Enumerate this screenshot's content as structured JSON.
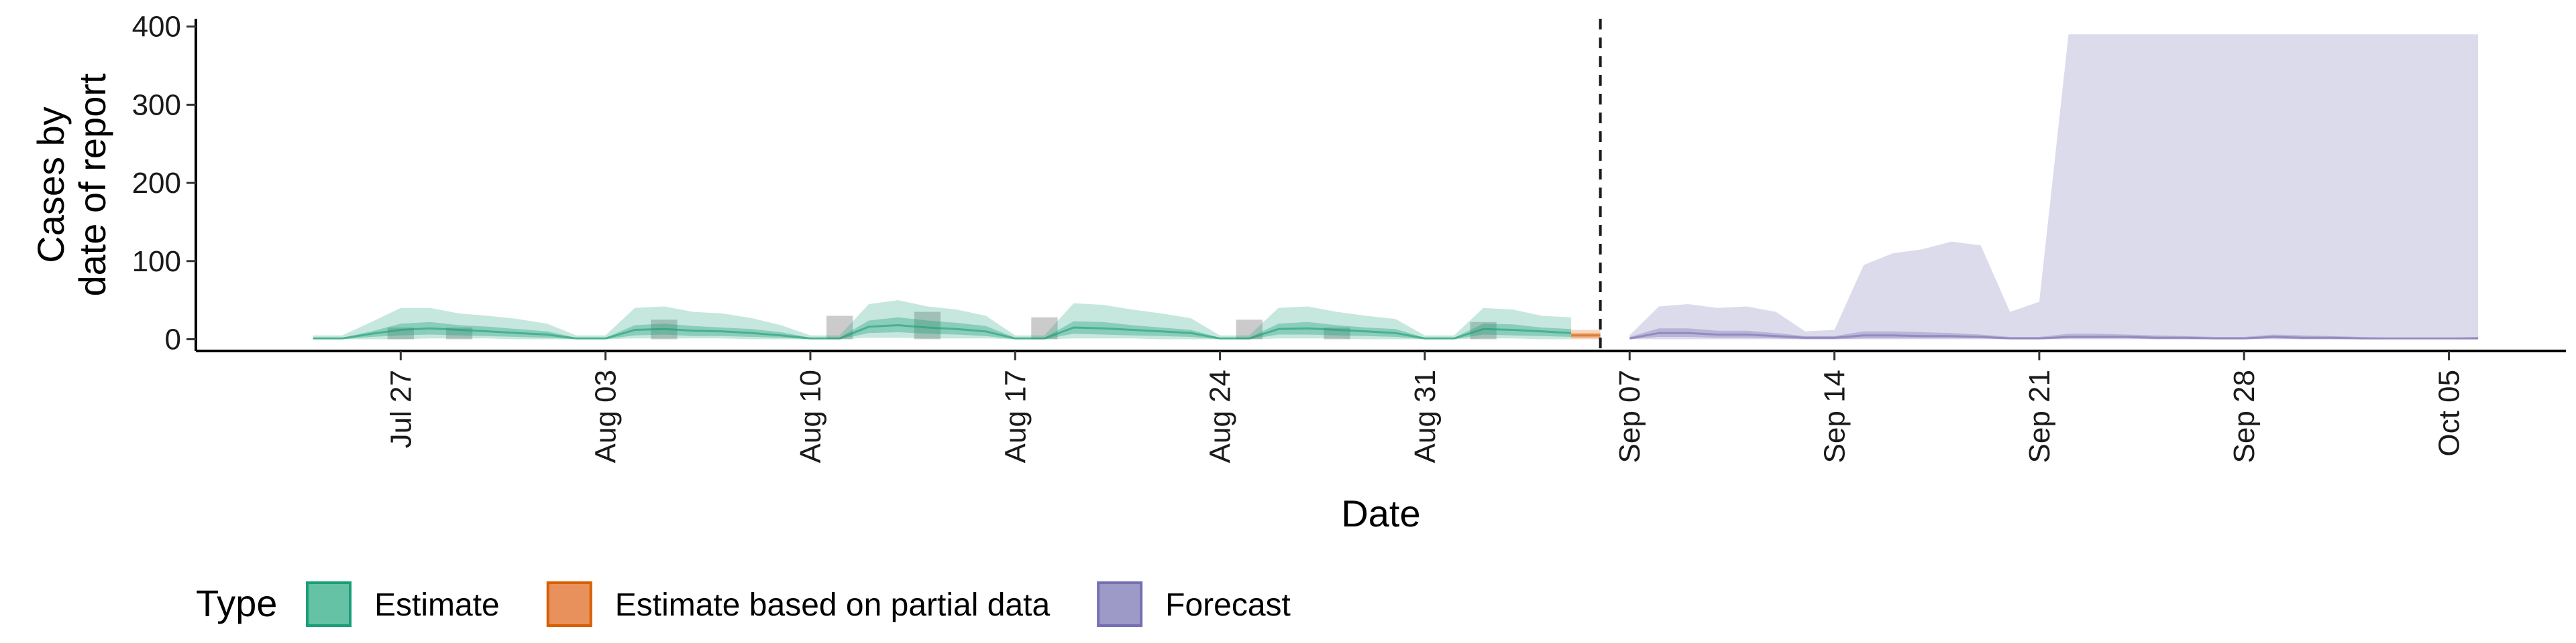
{
  "chart_data": {
    "type": "area",
    "xlabel": "Date",
    "ylabel_lines": [
      "Cases by",
      "date of report"
    ],
    "ylim": [
      -15,
      410
    ],
    "xlim": [
      "2020-07-20",
      "2020-10-09"
    ],
    "y_ticks": [
      0,
      100,
      200,
      300,
      400
    ],
    "x_ticks": [
      {
        "date": "2020-07-27",
        "label": "Jul 27"
      },
      {
        "date": "2020-08-03",
        "label": "Aug 03"
      },
      {
        "date": "2020-08-10",
        "label": "Aug 10"
      },
      {
        "date": "2020-08-17",
        "label": "Aug 17"
      },
      {
        "date": "2020-08-24",
        "label": "Aug 24"
      },
      {
        "date": "2020-08-31",
        "label": "Aug 31"
      },
      {
        "date": "2020-09-07",
        "label": "Sep 07"
      },
      {
        "date": "2020-09-14",
        "label": "Sep 14"
      },
      {
        "date": "2020-09-21",
        "label": "Sep 21"
      },
      {
        "date": "2020-09-28",
        "label": "Sep 28"
      },
      {
        "date": "2020-10-05",
        "label": "Oct 05"
      }
    ],
    "vline_date": "2020-09-06",
    "grid": false,
    "legend": {
      "title": "Type",
      "position": "bottom-left",
      "entries": [
        {
          "label": "Estimate",
          "fill": "#66c2a5",
          "stroke": "#1b9e77"
        },
        {
          "label": "Estimate based on partial data",
          "fill": "#e8915c",
          "stroke": "#d95f02"
        },
        {
          "label": "Forecast",
          "fill": "#9e9ac8",
          "stroke": "#7570b3"
        }
      ]
    },
    "series": [
      {
        "type_label": "Estimate",
        "color": "#1b9e77",
        "dates": [
          "2020-07-24",
          "2020-07-25",
          "2020-07-26",
          "2020-07-27",
          "2020-07-28",
          "2020-07-29",
          "2020-07-30",
          "2020-07-31",
          "2020-08-01",
          "2020-08-02",
          "2020-08-03",
          "2020-08-04",
          "2020-08-05",
          "2020-08-06",
          "2020-08-07",
          "2020-08-08",
          "2020-08-09",
          "2020-08-10",
          "2020-08-11",
          "2020-08-12",
          "2020-08-13",
          "2020-08-14",
          "2020-08-15",
          "2020-08-16",
          "2020-08-17",
          "2020-08-18",
          "2020-08-19",
          "2020-08-20",
          "2020-08-21",
          "2020-08-22",
          "2020-08-23",
          "2020-08-24",
          "2020-08-25",
          "2020-08-26",
          "2020-08-27",
          "2020-08-28",
          "2020-08-29",
          "2020-08-30",
          "2020-08-31",
          "2020-09-01",
          "2020-09-02",
          "2020-09-03",
          "2020-09-04",
          "2020-09-05"
        ],
        "upper90": [
          5,
          5,
          22,
          40,
          40,
          33,
          30,
          26,
          20,
          5,
          5,
          40,
          42,
          35,
          33,
          27,
          18,
          5,
          5,
          45,
          50,
          42,
          38,
          30,
          5,
          5,
          46,
          44,
          38,
          33,
          27,
          5,
          5,
          40,
          42,
          35,
          30,
          26,
          5,
          5,
          40,
          38,
          30,
          28
        ],
        "upper50": [
          2,
          2,
          10,
          20,
          22,
          18,
          16,
          13,
          10,
          2,
          2,
          18,
          20,
          17,
          15,
          13,
          9,
          2,
          2,
          24,
          28,
          24,
          21,
          17,
          2,
          2,
          23,
          22,
          18,
          15,
          12,
          2,
          2,
          20,
          22,
          18,
          15,
          13,
          2,
          2,
          20,
          19,
          15,
          13
        ],
        "median": [
          1,
          1,
          7,
          12,
          14,
          12,
          10,
          8,
          6,
          1,
          1,
          12,
          13,
          11,
          10,
          8,
          5,
          1,
          1,
          16,
          18,
          15,
          13,
          10,
          1,
          1,
          15,
          14,
          12,
          10,
          8,
          1,
          1,
          13,
          14,
          12,
          10,
          8,
          1,
          1,
          13,
          12,
          10,
          8
        ],
        "lower50": [
          0,
          0,
          3,
          5,
          6,
          5,
          4,
          3,
          2,
          0,
          0,
          5,
          6,
          4,
          4,
          3,
          2,
          0,
          0,
          8,
          9,
          7,
          6,
          4,
          0,
          0,
          7,
          6,
          5,
          4,
          3,
          0,
          0,
          6,
          6,
          5,
          4,
          3,
          0,
          0,
          6,
          5,
          4,
          3
        ],
        "lower90": [
          0,
          0,
          0,
          0,
          1,
          1,
          1,
          0,
          0,
          0,
          0,
          1,
          1,
          1,
          1,
          0,
          0,
          0,
          0,
          2,
          2,
          1,
          1,
          1,
          0,
          0,
          1,
          1,
          1,
          0,
          0,
          0,
          0,
          1,
          1,
          1,
          0,
          0,
          0,
          0,
          1,
          1,
          0,
          0
        ],
        "bars": [
          {
            "date": "2020-07-27",
            "value": 15
          },
          {
            "date": "2020-07-29",
            "value": 15
          },
          {
            "date": "2020-08-05",
            "value": 25
          },
          {
            "date": "2020-08-11",
            "value": 30
          },
          {
            "date": "2020-08-14",
            "value": 35
          },
          {
            "date": "2020-08-18",
            "value": 28
          },
          {
            "date": "2020-08-25",
            "value": 25
          },
          {
            "date": "2020-08-28",
            "value": 15
          },
          {
            "date": "2020-09-02",
            "value": 22
          }
        ]
      },
      {
        "type_label": "Estimate based on partial data",
        "color": "#d95f02",
        "dates": [
          "2020-09-05",
          "2020-09-06"
        ],
        "upper90": [
          12,
          12
        ],
        "upper50": [
          8,
          8
        ],
        "median": [
          5,
          5
        ],
        "lower50": [
          2,
          2
        ],
        "lower90": [
          0,
          0
        ]
      },
      {
        "type_label": "Forecast",
        "color": "#7570b3",
        "dates": [
          "2020-09-07",
          "2020-09-08",
          "2020-09-09",
          "2020-09-10",
          "2020-09-11",
          "2020-09-12",
          "2020-09-13",
          "2020-09-14",
          "2020-09-15",
          "2020-09-16",
          "2020-09-17",
          "2020-09-18",
          "2020-09-19",
          "2020-09-20",
          "2020-09-21",
          "2020-09-22",
          "2020-09-23",
          "2020-09-24",
          "2020-09-25",
          "2020-09-26",
          "2020-09-27",
          "2020-09-28",
          "2020-09-29",
          "2020-09-30",
          "2020-10-01",
          "2020-10-02",
          "2020-10-03",
          "2020-10-04",
          "2020-10-05",
          "2020-10-06"
        ],
        "upper90": [
          5,
          42,
          45,
          40,
          42,
          35,
          10,
          12,
          95,
          110,
          115,
          125,
          120,
          35,
          48,
          390,
          390,
          390,
          390,
          390,
          390,
          390,
          390,
          390,
          390,
          390,
          390,
          390,
          390,
          390
        ],
        "upper50": [
          3,
          14,
          14,
          11,
          11,
          8,
          4,
          4,
          10,
          10,
          9,
          8,
          6,
          3,
          3,
          7,
          7,
          6,
          5,
          4,
          3,
          3,
          6,
          5,
          4,
          3,
          2,
          2,
          2,
          3
        ],
        "median": [
          1,
          8,
          8,
          6,
          6,
          4,
          2,
          2,
          5,
          5,
          4,
          4,
          3,
          1,
          1,
          3,
          3,
          3,
          2,
          2,
          1,
          1,
          3,
          2,
          2,
          1,
          1,
          1,
          1,
          1
        ],
        "lower50": [
          0,
          3,
          3,
          2,
          2,
          1,
          0,
          0,
          1,
          1,
          1,
          1,
          1,
          0,
          0,
          1,
          1,
          1,
          0,
          0,
          0,
          0,
          1,
          0,
          0,
          0,
          0,
          0,
          0,
          0
        ],
        "lower90": [
          0,
          0,
          0,
          0,
          0,
          0,
          0,
          0,
          0,
          0,
          0,
          0,
          0,
          0,
          0,
          0,
          0,
          0,
          0,
          0,
          0,
          0,
          0,
          0,
          0,
          0,
          0,
          0,
          0,
          0
        ]
      }
    ]
  }
}
